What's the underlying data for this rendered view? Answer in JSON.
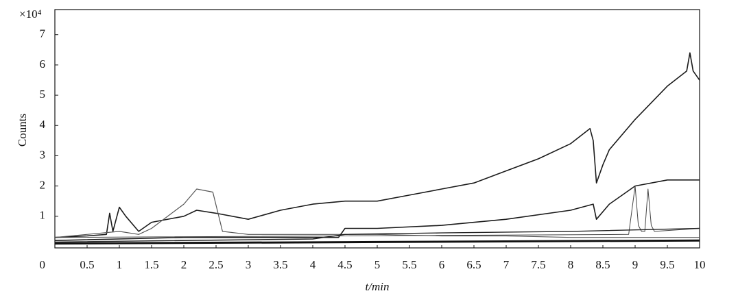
{
  "chart_data": {
    "type": "line",
    "y_label": "Counts",
    "x_label": "t/min",
    "y_multiplier": "×10⁴",
    "xlim": [
      0,
      10
    ],
    "ylim": [
      0,
      7.83
    ],
    "xticks": [
      0,
      0.5,
      1,
      1.5,
      2,
      2.5,
      3,
      3.5,
      4,
      4.5,
      5,
      5.5,
      6,
      6.5,
      7,
      7.5,
      8,
      8.5,
      9,
      9.5,
      10
    ],
    "yticks": [
      1,
      2,
      3,
      4,
      5,
      6,
      7
    ],
    "series": [
      {
        "color": "#1a1a1a",
        "width": 1.6,
        "x": [
          0,
          0.5,
          0.8,
          0.85,
          0.9,
          1.0,
          1.1,
          1.3,
          1.5,
          2.0,
          2.2,
          2.5,
          3.0,
          3.5,
          4.0,
          4.5,
          5.0,
          5.5,
          6.0,
          6.5,
          7.0,
          7.5,
          8.0,
          8.3,
          8.35,
          8.4,
          8.5,
          8.6,
          9.0,
          9.5,
          9.8,
          9.85,
          9.9,
          10
        ],
        "values": [
          0.3,
          0.35,
          0.4,
          1.1,
          0.5,
          1.3,
          1.0,
          0.5,
          0.8,
          1.0,
          1.2,
          1.1,
          0.9,
          1.2,
          1.4,
          1.5,
          1.5,
          1.7,
          1.9,
          2.1,
          2.5,
          2.9,
          3.4,
          3.9,
          3.5,
          2.1,
          2.7,
          3.2,
          4.2,
          5.3,
          5.8,
          6.4,
          5.8,
          5.5
        ]
      },
      {
        "color": "#555555",
        "width": 1.2,
        "x": [
          0,
          1.0,
          1.3,
          1.5,
          2.0,
          2.2,
          2.45,
          2.6,
          3.0,
          4.0,
          5.0,
          6.0,
          7.0,
          8.0,
          9.0,
          10
        ],
        "values": [
          0.3,
          0.5,
          0.4,
          0.6,
          1.4,
          1.9,
          1.8,
          0.5,
          0.4,
          0.4,
          0.4,
          0.35,
          0.35,
          0.3,
          0.3,
          0.3
        ]
      },
      {
        "color": "#1a1a1a",
        "width": 1.6,
        "x": [
          0,
          2,
          4.4,
          4.5,
          5,
          6,
          7,
          8,
          8.35,
          8.4,
          8.6,
          9,
          9.5,
          10
        ],
        "values": [
          0.2,
          0.3,
          0.3,
          0.6,
          0.6,
          0.7,
          0.9,
          1.2,
          1.4,
          0.9,
          1.4,
          2.0,
          2.2,
          2.2
        ]
      },
      {
        "color": "#444444",
        "width": 1,
        "x": [
          0,
          8.9,
          9.0,
          9.05,
          9.1,
          9.15,
          9.2,
          9.25,
          9.3,
          10
        ],
        "values": [
          0.3,
          0.4,
          2.0,
          0.7,
          0.5,
          0.5,
          1.9,
          0.7,
          0.5,
          0.6
        ]
      },
      {
        "color": "#222222",
        "width": 1.4,
        "x": [
          0,
          4,
          4.5,
          6,
          8,
          10
        ],
        "values": [
          0.15,
          0.25,
          0.4,
          0.45,
          0.5,
          0.6
        ]
      },
      {
        "color": "#111111",
        "width": 3,
        "x": [
          0,
          5,
          10
        ],
        "values": [
          0.1,
          0.15,
          0.2
        ]
      }
    ]
  }
}
